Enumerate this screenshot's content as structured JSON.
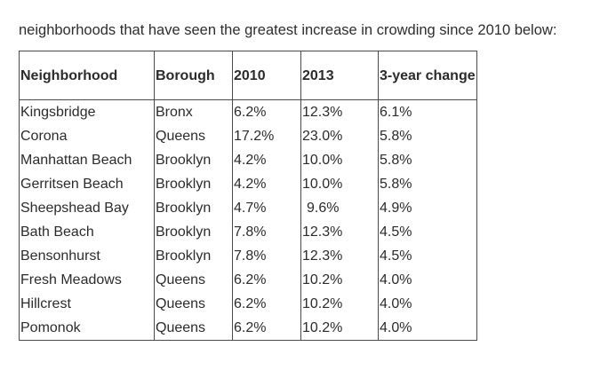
{
  "intro": "neighborhoods that have seen the greatest increase in crowding since 2010 below:",
  "table": {
    "headers": {
      "neighborhood": "Neighborhood",
      "borough": "Borough",
      "y2010": "2010",
      "y2013": "2013",
      "change": "3-year change"
    },
    "rows": [
      {
        "neighborhood": "Kingsbridge",
        "borough": "Bronx",
        "y2010": "6.2%",
        "y2013": "12.3%",
        "change": "6.1%"
      },
      {
        "neighborhood": "Corona",
        "borough": "Queens",
        "y2010": "17.2%",
        "y2013": "23.0%",
        "change": "5.8%"
      },
      {
        "neighborhood": "Manhattan Beach",
        "borough": "Brooklyn",
        "y2010": "4.2%",
        "y2013": "10.0%",
        "change": "5.8%"
      },
      {
        "neighborhood": "Gerritsen Beach",
        "borough": "Brooklyn",
        "y2010": "4.2%",
        "y2013": "10.0%",
        "change": "5.8%"
      },
      {
        "neighborhood": "Sheepshead Bay",
        "borough": "Brooklyn",
        "y2010": "4.7%",
        "y2013": "9.6%",
        "change": "4.9%"
      },
      {
        "neighborhood": "Bath Beach",
        "borough": "Brooklyn",
        "y2010": "7.8%",
        "y2013": "12.3%",
        "change": "4.5%"
      },
      {
        "neighborhood": "Bensonhurst",
        "borough": "Brooklyn",
        "y2010": "7.8%",
        "y2013": "12.3%",
        "change": "4.5%"
      },
      {
        "neighborhood": "Fresh Meadows",
        "borough": "Queens",
        "y2010": "6.2%",
        "y2013": "10.2%",
        "change": "4.0%"
      },
      {
        "neighborhood": "Hillcrest",
        "borough": "Queens",
        "y2010": "6.2%",
        "y2013": "10.2%",
        "change": "4.0%"
      },
      {
        "neighborhood": "Pomonok",
        "borough": "Queens",
        "y2010": "6.2%",
        "y2013": "10.2%",
        "change": "4.0%"
      }
    ]
  }
}
